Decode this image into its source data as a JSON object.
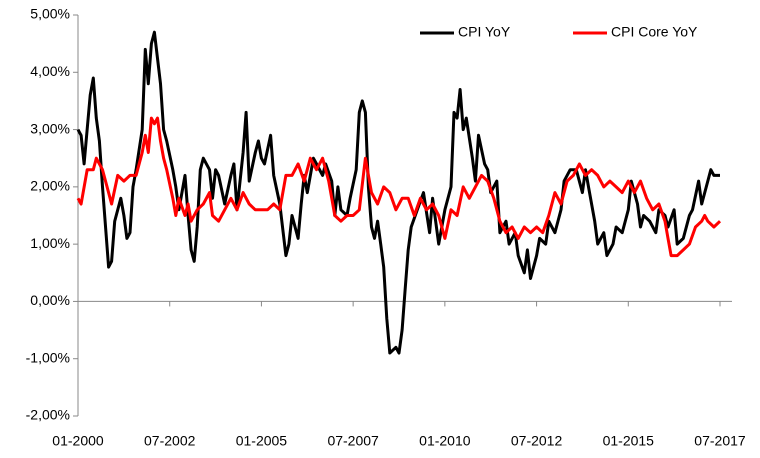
{
  "chart_data": {
    "type": "line",
    "legend": "top-right",
    "xlim": [
      "01-2000",
      "07-2017"
    ],
    "xticks": [
      "01-2000",
      "07-2002",
      "01-2005",
      "07-2007",
      "01-2010",
      "07-2012",
      "01-2015",
      "07-2017"
    ],
    "ylim": [
      -2,
      5
    ],
    "yticks": [
      {
        "value": -2,
        "label": "-2,00%"
      },
      {
        "value": -1,
        "label": "-1,00%"
      },
      {
        "value": 0,
        "label": "0,00%"
      },
      {
        "value": 1,
        "label": "1,00%"
      },
      {
        "value": 2,
        "label": "2,00%"
      },
      {
        "value": 3,
        "label": "3,00%"
      },
      {
        "value": 4,
        "label": "4,00%"
      },
      {
        "value": 5,
        "label": "5,00%"
      }
    ],
    "series": [
      {
        "name": "CPI YoY",
        "color": "#000000",
        "x": [
          "01-2000",
          "02-2000",
          "03-2000",
          "05-2000",
          "06-2000",
          "07-2000",
          "08-2000",
          "09-2000",
          "11-2000",
          "12-2000",
          "01-2001",
          "03-2001",
          "04-2001",
          "05-2001",
          "06-2001",
          "07-2001",
          "08-2001",
          "10-2001",
          "11-2001",
          "12-2001",
          "01-2002",
          "02-2002",
          "04-2002",
          "05-2002",
          "06-2002",
          "08-2002",
          "09-2002",
          "10-2002",
          "12-2002",
          "01-2003",
          "02-2003",
          "03-2003",
          "04-2003",
          "05-2003",
          "06-2003",
          "08-2003",
          "09-2003",
          "10-2003",
          "11-2003",
          "01-2004",
          "03-2004",
          "04-2004",
          "05-2004",
          "07-2004",
          "08-2004",
          "09-2004",
          "11-2004",
          "12-2004",
          "01-2005",
          "02-2005",
          "04-2005",
          "05-2005",
          "07-2005",
          "09-2005",
          "10-2005",
          "11-2005",
          "01-2006",
          "02-2006",
          "03-2006",
          "04-2006",
          "06-2006",
          "07-2006",
          "09-2006",
          "10-2006",
          "12-2006",
          "01-2007",
          "02-2007",
          "03-2007",
          "05-2007",
          "06-2007",
          "08-2007",
          "09-2007",
          "10-2007",
          "11-2007",
          "12-2007",
          "01-2008",
          "02-2008",
          "03-2008",
          "04-2008",
          "05-2008",
          "06-2008",
          "07-2008",
          "09-2008",
          "10-2008",
          "11-2008",
          "12-2008",
          "01-2009",
          "02-2009",
          "04-2009",
          "06-2009",
          "08-2009",
          "09-2009",
          "11-2009",
          "01-2010",
          "03-2010",
          "04-2010",
          "05-2010",
          "06-2010",
          "07-2010",
          "08-2010",
          "10-2010",
          "11-2010",
          "12-2010",
          "02-2011",
          "03-2011",
          "04-2011",
          "06-2011",
          "07-2011",
          "09-2011",
          "10-2011",
          "12-2011",
          "01-2012",
          "03-2012",
          "04-2012",
          "05-2012",
          "07-2012",
          "08-2012",
          "10-2012",
          "11-2012",
          "01-2013",
          "03-2013",
          "04-2013",
          "06-2013",
          "08-2013",
          "10-2013",
          "11-2013",
          "12-2013",
          "02-2014",
          "03-2014",
          "05-2014",
          "06-2014",
          "08-2014",
          "09-2014",
          "11-2014",
          "01-2015",
          "02-2015",
          "04-2015",
          "05-2015",
          "06-2015",
          "08-2015",
          "10-2015",
          "11-2015",
          "01-2016",
          "02-2016",
          "04-2016",
          "05-2016",
          "07-2016",
          "09-2016",
          "10-2016",
          "12-2016",
          "01-2017",
          "03-2017",
          "04-2017",
          "05-2017",
          "07-2017"
        ],
        "values": [
          3.0,
          2.9,
          2.4,
          3.6,
          3.9,
          3.2,
          2.8,
          2.0,
          0.6,
          0.7,
          1.4,
          1.8,
          1.5,
          1.1,
          1.2,
          2.0,
          2.3,
          3.0,
          4.4,
          3.8,
          4.5,
          4.7,
          3.8,
          3.0,
          2.8,
          2.3,
          2.0,
          1.6,
          2.2,
          1.5,
          0.9,
          0.7,
          1.3,
          2.3,
          2.5,
          2.3,
          1.8,
          2.3,
          2.2,
          1.7,
          2.2,
          2.4,
          1.6,
          2.6,
          3.3,
          2.1,
          2.6,
          2.8,
          2.5,
          2.4,
          2.9,
          2.2,
          1.7,
          0.8,
          1.0,
          1.5,
          1.1,
          1.7,
          2.2,
          1.9,
          2.5,
          2.4,
          2.2,
          2.4,
          2.1,
          1.5,
          2.0,
          1.6,
          1.5,
          1.8,
          2.3,
          3.3,
          3.5,
          3.3,
          2.0,
          1.3,
          1.1,
          1.4,
          1.0,
          0.6,
          -0.3,
          -0.9,
          -0.8,
          -0.9,
          -0.5,
          0.2,
          0.9,
          1.3,
          1.6,
          1.9,
          1.2,
          1.8,
          1.0,
          1.6,
          2.0,
          3.3,
          3.2,
          3.7,
          3.0,
          3.2,
          2.5,
          2.1,
          2.9,
          2.4,
          2.3,
          1.9,
          2.1,
          1.2,
          1.4,
          1.0,
          1.2,
          0.8,
          0.5,
          0.9,
          0.4,
          0.8,
          1.1,
          1.0,
          1.4,
          1.2,
          1.6,
          2.1,
          2.3,
          2.3,
          1.9,
          2.3,
          2.0,
          1.4,
          1.0,
          1.2,
          0.8,
          1.0,
          1.3,
          1.2,
          1.6,
          2.1,
          1.7,
          1.3,
          1.5,
          1.4,
          1.2,
          1.6,
          1.5,
          1.3,
          1.6,
          1.0,
          1.1,
          1.5,
          1.6,
          2.1,
          1.7,
          2.1,
          2.3,
          2.2,
          2.2
        ]
      },
      {
        "name": "CPI Core YoY",
        "color": "#ff0000",
        "x": [
          "01-2000",
          "02-2000",
          "04-2000",
          "06-2000",
          "07-2000",
          "09-2000",
          "11-2000",
          "12-2000",
          "02-2001",
          "04-2001",
          "06-2001",
          "08-2001",
          "10-2001",
          "11-2001",
          "12-2001",
          "01-2002",
          "02-2002",
          "03-2002",
          "04-2002",
          "05-2002",
          "06-2002",
          "08-2002",
          "09-2002",
          "10-2002",
          "12-2002",
          "01-2003",
          "02-2003",
          "04-2003",
          "06-2003",
          "08-2003",
          "09-2003",
          "11-2003",
          "01-2004",
          "03-2004",
          "05-2004",
          "07-2004",
          "09-2004",
          "11-2004",
          "01-2005",
          "03-2005",
          "05-2005",
          "07-2005",
          "09-2005",
          "11-2005",
          "01-2006",
          "03-2006",
          "05-2006",
          "07-2006",
          "09-2006",
          "11-2006",
          "01-2007",
          "03-2007",
          "05-2007",
          "07-2007",
          "09-2007",
          "11-2007",
          "01-2008",
          "03-2008",
          "05-2008",
          "07-2008",
          "09-2008",
          "11-2008",
          "01-2009",
          "03-2009",
          "05-2009",
          "07-2009",
          "09-2009",
          "11-2009",
          "01-2010",
          "03-2010",
          "05-2010",
          "07-2010",
          "09-2010",
          "11-2010",
          "01-2011",
          "03-2011",
          "05-2011",
          "07-2011",
          "09-2011",
          "11-2011",
          "01-2012",
          "03-2012",
          "05-2012",
          "07-2012",
          "09-2012",
          "11-2012",
          "01-2013",
          "03-2013",
          "05-2013",
          "07-2013",
          "09-2013",
          "11-2013",
          "01-2014",
          "03-2014",
          "05-2014",
          "07-2014",
          "09-2014",
          "11-2014",
          "01-2015",
          "03-2015",
          "05-2015",
          "07-2015",
          "09-2015",
          "11-2015",
          "01-2016",
          "02-2016",
          "03-2016",
          "05-2016",
          "07-2016",
          "09-2016",
          "11-2016",
          "01-2017",
          "02-2017",
          "03-2017",
          "05-2017",
          "07-2017"
        ],
        "values": [
          1.8,
          1.7,
          2.3,
          2.3,
          2.5,
          2.3,
          1.9,
          1.7,
          2.2,
          2.1,
          2.2,
          2.2,
          2.6,
          2.9,
          2.6,
          3.2,
          3.1,
          3.2,
          2.8,
          2.5,
          2.3,
          1.8,
          1.5,
          1.8,
          1.5,
          1.7,
          1.4,
          1.6,
          1.7,
          1.9,
          1.5,
          1.4,
          1.6,
          1.8,
          1.6,
          1.9,
          1.7,
          1.6,
          1.6,
          1.6,
          1.7,
          1.6,
          2.2,
          2.2,
          2.4,
          2.1,
          2.5,
          2.3,
          2.5,
          2.1,
          1.5,
          1.4,
          1.5,
          1.5,
          1.6,
          2.5,
          1.9,
          1.7,
          2.0,
          1.9,
          1.6,
          1.8,
          1.8,
          1.5,
          1.8,
          1.6,
          1.7,
          1.5,
          1.1,
          1.6,
          1.5,
          2.0,
          1.8,
          2.0,
          2.2,
          2.1,
          1.8,
          1.4,
          1.2,
          1.3,
          1.1,
          1.3,
          1.2,
          1.3,
          1.2,
          1.5,
          1.9,
          1.7,
          2.1,
          2.2,
          2.4,
          2.2,
          2.3,
          2.2,
          2.0,
          2.1,
          2.0,
          1.9,
          2.1,
          1.9,
          2.1,
          1.8,
          1.6,
          1.7,
          1.4,
          1.1,
          0.8,
          0.8,
          0.9,
          1.0,
          1.3,
          1.4,
          1.5,
          1.4,
          1.3,
          1.4
        ]
      }
    ]
  }
}
